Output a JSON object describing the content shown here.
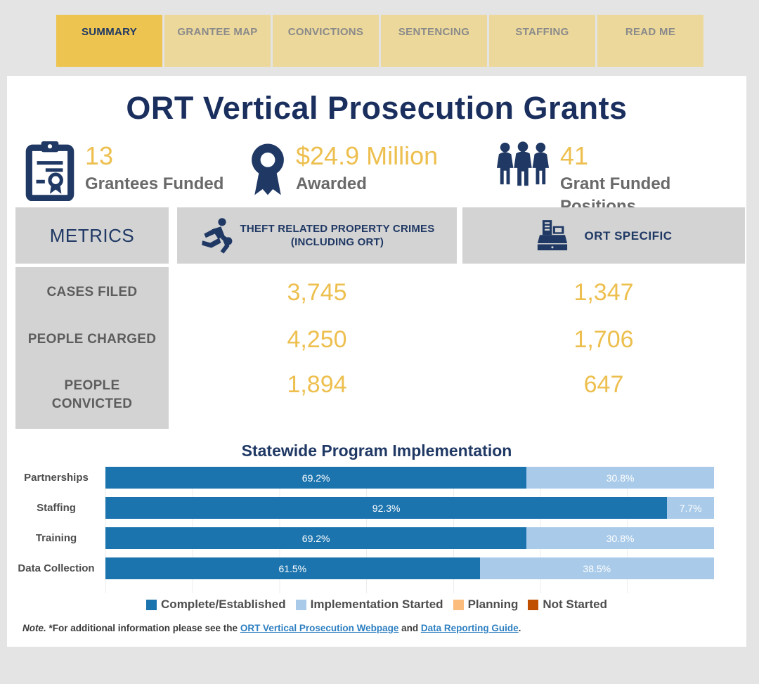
{
  "colors": {
    "navy": "#1f3864",
    "gold": "#edbf4e",
    "gray_label": "#6a6a6a",
    "header_bg": "#d3d3d3",
    "tab_active_bg": "#edc44f",
    "tab_inactive_bg": "#ecd89b",
    "link_blue": "#2d7fc1",
    "page_bg": "#e4e4e4"
  },
  "tabs": [
    {
      "label": "SUMMARY",
      "active": true
    },
    {
      "label": "GRANTEE MAP",
      "active": false
    },
    {
      "label": "CONVICTIONS",
      "active": false
    },
    {
      "label": "SENTENCING",
      "active": false
    },
    {
      "label": "STAFFING",
      "active": false
    },
    {
      "label": "READ ME",
      "active": false
    }
  ],
  "page_title": "ORT Vertical Prosecution Grants",
  "stats": [
    {
      "icon": "clipboard-certificate-icon",
      "value": "13",
      "label": "Grantees Funded"
    },
    {
      "icon": "award-ribbon-icon",
      "value": "$24.9 Million",
      "label": "Awarded"
    },
    {
      "icon": "people-group-icon",
      "value": "41",
      "label": "Grant Funded Positions"
    }
  ],
  "metrics_table": {
    "header": {
      "metrics_label": "METRICS",
      "col1": {
        "icon": "running-thief-icon",
        "label_line1": "THEFT RELATED PROPERTY CRIMES",
        "label_line2": "(INCLUDING ORT)"
      },
      "col2": {
        "icon": "cash-register-icon",
        "label": "ORT SPECIFIC"
      }
    },
    "rows": [
      {
        "label": "CASES FILED",
        "theft_value": "3,745",
        "ort_value": "1,347"
      },
      {
        "label": "PEOPLE CHARGED",
        "theft_value": "4,250",
        "ort_value": "1,706"
      },
      {
        "label": "PEOPLE CONVICTED",
        "theft_value": "1,894",
        "ort_value": "647"
      }
    ]
  },
  "chart_data": {
    "type": "bar",
    "orientation": "horizontal",
    "stacked": true,
    "title": "Statewide Program Implementation",
    "categories": [
      "Partnerships",
      "Staffing",
      "Training",
      "Data Collection"
    ],
    "series": [
      {
        "name": "Complete/Established",
        "color": "#1b74ae",
        "values": [
          69.2,
          92.3,
          69.2,
          61.5
        ]
      },
      {
        "name": "Implementation Started",
        "color": "#a9cbe9",
        "values": [
          30.8,
          7.7,
          30.8,
          38.5
        ]
      },
      {
        "name": "Planning",
        "color": "#fcbc7c",
        "values": [
          0,
          0,
          0,
          0
        ]
      },
      {
        "name": "Not Started",
        "color": "#c14f01",
        "values": [
          0,
          0,
          0,
          0
        ]
      }
    ],
    "value_suffix": "%",
    "xlim": [
      0,
      100
    ],
    "grid": true,
    "legend_position": "bottom"
  },
  "note": {
    "prefix_italic": "Note.",
    "text_before_link1": " *For additional information please see the ",
    "link1": "ORT Vertical Prosecution Webpage",
    "text_between_links": " and ",
    "link2": "Data Reporting Guide",
    "suffix": "."
  }
}
